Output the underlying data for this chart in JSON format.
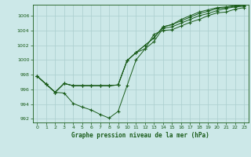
{
  "xlabel": "Graphe pression niveau de la mer (hPa)",
  "background_color": "#cce8e8",
  "line_color": "#1a5c1a",
  "grid_color": "#aacece",
  "xlim": [
    -0.5,
    23.5
  ],
  "ylim": [
    991.5,
    1007.5
  ],
  "yticks": [
    992,
    994,
    996,
    998,
    1000,
    1002,
    1004,
    1006
  ],
  "xticks": [
    0,
    1,
    2,
    3,
    4,
    5,
    6,
    7,
    8,
    9,
    10,
    11,
    12,
    13,
    14,
    15,
    16,
    17,
    18,
    19,
    20,
    21,
    22,
    23
  ],
  "line1": [
    997.8,
    996.7,
    995.6,
    995.5,
    994.1,
    993.6,
    993.2,
    992.6,
    992.1,
    993.0,
    996.5,
    1000.0,
    1001.5,
    1003.5,
    1004.0,
    1004.1,
    1004.6,
    1005.1,
    1005.5,
    1006.0,
    1006.4,
    1006.5,
    1006.9,
    1007.1
  ],
  "line2": [
    997.8,
    996.7,
    995.6,
    996.8,
    996.5,
    996.5,
    996.5,
    996.5,
    996.5,
    996.6,
    999.9,
    1001.0,
    1001.5,
    1002.5,
    1004.3,
    1004.5,
    1005.0,
    1005.5,
    1006.0,
    1006.3,
    1006.7,
    1007.0,
    1007.2,
    1007.3
  ],
  "line3": [
    997.8,
    996.7,
    995.6,
    996.8,
    996.5,
    996.5,
    996.5,
    996.5,
    996.5,
    996.6,
    999.9,
    1001.0,
    1002.0,
    1003.0,
    1004.5,
    1004.8,
    1005.3,
    1005.8,
    1006.3,
    1006.6,
    1007.0,
    1007.1,
    1007.3,
    1007.4
  ],
  "line4": [
    997.8,
    996.7,
    995.6,
    996.8,
    996.5,
    996.5,
    996.5,
    996.5,
    996.5,
    996.6,
    999.9,
    1001.0,
    1002.0,
    1003.0,
    1004.5,
    1004.8,
    1005.5,
    1006.0,
    1006.5,
    1006.8,
    1007.1,
    1007.2,
    1007.4,
    1007.5
  ]
}
